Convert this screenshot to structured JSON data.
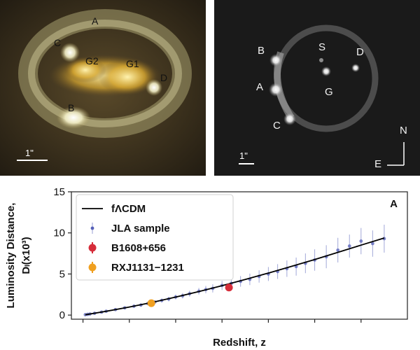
{
  "left_image": {
    "labels": [
      "A",
      "C",
      "G2",
      "G1",
      "D",
      "B"
    ],
    "scale_label": "1\""
  },
  "right_image": {
    "labels": [
      "B",
      "S",
      "D",
      "A",
      "G",
      "C"
    ],
    "scale_label": "1\"",
    "compass_north": "N",
    "compass_east": "E"
  },
  "colors": {
    "model_line": "#000000",
    "jla": "#5560b8",
    "b1608": "#d62d3a",
    "rxj": "#f0a020",
    "left_bg": "#2a2418",
    "right_bg": "#1a1a1a"
  },
  "chart_data": {
    "type": "scatter",
    "panel_label": "A",
    "xlabel": "Redshift, z",
    "ylabel_line1": "Luminosity Distance,",
    "ylabel_line2": "Dₗ(x10³)",
    "ylim": [
      -0.5,
      15
    ],
    "xlim": [
      -0.05,
      1.4
    ],
    "yticks": [
      0,
      5,
      10,
      15
    ],
    "xticks_unlabeled": [
      0.0,
      0.2,
      0.4,
      0.6,
      0.8,
      1.0,
      1.2
    ],
    "grid": false,
    "legend_position": "top-left",
    "series": [
      {
        "name": "fΛCDM",
        "kind": "line",
        "x": [
          0.01,
          0.1,
          0.2,
          0.3,
          0.4,
          0.5,
          0.6,
          0.7,
          0.8,
          0.9,
          1.0,
          1.1,
          1.2,
          1.3
        ],
        "y": [
          0.04,
          0.46,
          0.98,
          1.55,
          2.19,
          2.86,
          3.58,
          4.33,
          5.11,
          5.93,
          6.76,
          7.63,
          8.51,
          9.38
        ]
      },
      {
        "name": "JLA sample",
        "kind": "errorbar-points",
        "x": [
          0.01,
          0.02,
          0.03,
          0.05,
          0.08,
          0.1,
          0.14,
          0.18,
          0.22,
          0.25,
          0.28,
          0.31,
          0.34,
          0.37,
          0.4,
          0.43,
          0.46,
          0.5,
          0.53,
          0.56,
          0.6,
          0.64,
          0.68,
          0.72,
          0.76,
          0.8,
          0.84,
          0.88,
          0.92,
          0.96,
          1.0,
          1.05,
          1.1,
          1.15,
          1.2,
          1.25,
          1.3
        ],
        "y": [
          0.05,
          0.09,
          0.13,
          0.22,
          0.36,
          0.47,
          0.67,
          0.88,
          1.08,
          1.22,
          1.4,
          1.58,
          1.78,
          1.95,
          2.2,
          2.35,
          2.6,
          2.9,
          3.1,
          3.25,
          3.6,
          3.85,
          4.1,
          4.35,
          4.7,
          5.0,
          5.3,
          5.65,
          5.9,
          6.3,
          6.7,
          7.1,
          7.9,
          8.4,
          9.0,
          8.7,
          9.3
        ],
        "yerr": [
          0.02,
          0.03,
          0.03,
          0.05,
          0.06,
          0.07,
          0.1,
          0.12,
          0.15,
          0.17,
          0.2,
          0.22,
          0.25,
          0.28,
          0.3,
          0.33,
          0.36,
          0.4,
          0.45,
          0.5,
          0.55,
          0.6,
          0.65,
          0.7,
          0.75,
          0.85,
          0.9,
          1.0,
          1.1,
          1.2,
          1.3,
          1.4,
          1.5,
          1.4,
          1.6,
          1.6,
          1.7
        ]
      },
      {
        "name": "B1608+656",
        "kind": "highlight-point",
        "x": [
          0.63
        ],
        "y": [
          3.35
        ],
        "yerr": [
          0.25
        ]
      },
      {
        "name": "RXJ1131−1231",
        "kind": "highlight-point",
        "x": [
          0.295
        ],
        "y": [
          1.45
        ],
        "yerr": [
          0.2
        ]
      }
    ]
  }
}
